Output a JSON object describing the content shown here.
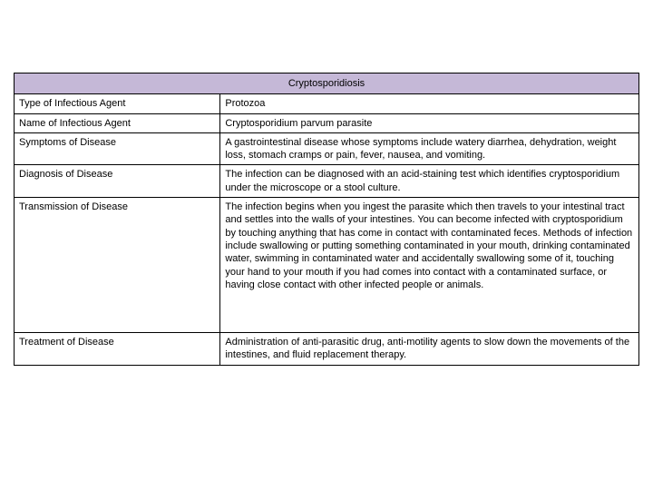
{
  "table": {
    "title": "Cryptosporidiosis",
    "header_bg": "#c5b8d7",
    "border_color": "#000000",
    "font_size": 11,
    "columns": [
      {
        "width": "33%"
      },
      {
        "width": "67%"
      }
    ],
    "rows": [
      {
        "label": "Type of Infectious Agent",
        "value": "Protozoa"
      },
      {
        "label": "Name of Infectious Agent",
        "value": "Cryptosporidium parvum parasite"
      },
      {
        "label": "Symptoms of Disease",
        "value": "A gastrointestinal disease whose symptoms include watery diarrhea, dehydration, weight loss, stomach cramps or pain, fever, nausea, and vomiting."
      },
      {
        "label": "Diagnosis of Disease",
        "value": "The infection can be diagnosed with an acid-staining test which identifies cryptosporidium under the microscope or a stool culture."
      },
      {
        "label": "Transmission of Disease",
        "value": "The infection begins when you ingest the parasite which then travels to your intestinal tract and settles into the walls of your intestines. You can become infected with cryptosporidium by touching anything that has come in contact with contaminated feces. Methods of infection include swallowing or putting something contaminated in your mouth, drinking contaminated water, swimming in contaminated water and accidentally swallowing some of it, touching your hand to your mouth if you had comes into contact with a contaminated surface, or having close contact with other infected people or animals.",
        "tall": true
      },
      {
        "label": "Treatment of Disease",
        "value": "Administration of anti-parasitic drug, anti-motility agents to slow down the movements of the intestines, and fluid replacement therapy."
      }
    ]
  }
}
